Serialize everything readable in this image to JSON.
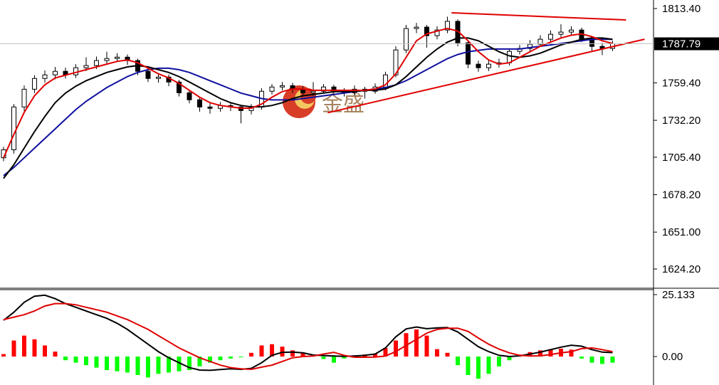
{
  "chart_data": [
    {
      "type": "candlestick",
      "xlim": [
        -0.345,
        62.76
      ],
      "ylim": [
        1610.24,
        1819.6
      ],
      "yticks": [
        {
          "value": 1813.4,
          "label": "1813.40"
        },
        {
          "value": 1759.4,
          "label": "1759.40"
        },
        {
          "value": 1732.2,
          "label": "1732.20"
        },
        {
          "value": 1705.4,
          "label": "1705.40"
        },
        {
          "value": 1678.2,
          "label": "1678.20"
        },
        {
          "value": 1651.0,
          "label": "1651.00"
        },
        {
          "value": 1624.2,
          "label": "1624.20"
        }
      ],
      "last_price": 1787.79,
      "watermark": "金盛",
      "open": [
        1705.0,
        1710.8,
        1741.9,
        1754.8,
        1762.6,
        1765.2,
        1767.8,
        1765.2,
        1770.4,
        1772.0,
        1775.6,
        1777.1,
        1778.1,
        1775.6,
        1767.8,
        1762.6,
        1763.6,
        1760.0,
        1752.2,
        1747.1,
        1741.9,
        1740.9,
        1742.9,
        1741.9,
        1739.3,
        1741.9,
        1753.3,
        1756.4,
        1757.4,
        1754.8,
        1752.2,
        1753.3,
        1756.4,
        1753.3,
        1752.2,
        1754.8,
        1753.3,
        1756.4,
        1765.2,
        1783.3,
        1798.9,
        1799.9,
        1793.7,
        1797.8,
        1804.1,
        1788.5,
        1773.0,
        1770.4,
        1773.0,
        1774.0,
        1782.3,
        1784.4,
        1787.5,
        1791.1,
        1794.7,
        1796.3,
        1797.8,
        1791.1,
        1785.9,
        1784.4
      ],
      "high": [
        1713.0,
        1744.0,
        1757.5,
        1765.0,
        1768.5,
        1771.0,
        1770.5,
        1773.0,
        1778.0,
        1778.5,
        1782.0,
        1781.0,
        1780.0,
        1777.0,
        1769.5,
        1766.0,
        1765.5,
        1761.5,
        1754.0,
        1749.0,
        1744.5,
        1745.5,
        1745.0,
        1743.5,
        1744.0,
        1755.5,
        1758.5,
        1760.0,
        1759.5,
        1757.0,
        1760.0,
        1758.5,
        1758.0,
        1755.5,
        1757.5,
        1756.5,
        1759.0,
        1767.5,
        1786.0,
        1801.5,
        1803.0,
        1801.5,
        1800.5,
        1807.5,
        1805.5,
        1790.0,
        1775.5,
        1775.5,
        1777.0,
        1784.5,
        1787.0,
        1790.5,
        1794.0,
        1797.5,
        1802.0,
        1800.5,
        1799.5,
        1793.0,
        1788.5,
        1790.0
      ],
      "low": [
        1702.5,
        1708.0,
        1739.0,
        1752.0,
        1759.5,
        1762.0,
        1762.5,
        1763.0,
        1768.0,
        1769.5,
        1773.0,
        1774.5,
        1772.5,
        1765.0,
        1760.0,
        1759.5,
        1757.0,
        1749.5,
        1744.5,
        1738.5,
        1737.0,
        1738.5,
        1739.0,
        1730.0,
        1736.5,
        1740.0,
        1751.0,
        1754.0,
        1752.0,
        1749.5,
        1750.0,
        1751.5,
        1751.0,
        1749.5,
        1750.5,
        1748.0,
        1751.5,
        1754.0,
        1763.5,
        1781.0,
        1795.5,
        1785.0,
        1791.0,
        1795.5,
        1786.0,
        1770.0,
        1767.5,
        1768.0,
        1770.5,
        1772.0,
        1780.0,
        1782.0,
        1785.5,
        1789.0,
        1792.5,
        1793.5,
        1789.0,
        1782.0,
        1779.5,
        1782.5
      ],
      "close": [
        1710.8,
        1741.9,
        1754.8,
        1762.6,
        1765.2,
        1767.8,
        1765.2,
        1770.4,
        1772.0,
        1775.6,
        1777.1,
        1778.1,
        1775.6,
        1767.8,
        1762.6,
        1763.6,
        1760.0,
        1752.2,
        1747.1,
        1741.9,
        1740.9,
        1742.9,
        1741.9,
        1739.3,
        1741.9,
        1753.3,
        1756.4,
        1757.4,
        1754.8,
        1752.2,
        1753.3,
        1756.4,
        1753.3,
        1752.2,
        1754.8,
        1753.3,
        1756.4,
        1765.2,
        1783.3,
        1798.9,
        1799.9,
        1793.7,
        1797.8,
        1804.1,
        1788.5,
        1773.0,
        1770.4,
        1773.0,
        1774.0,
        1782.3,
        1784.4,
        1787.5,
        1791.1,
        1794.7,
        1796.3,
        1797.8,
        1791.1,
        1785.9,
        1784.4,
        1787.8
      ],
      "lines": [
        {
          "color": "#1010a0",
          "values": [
            1692,
            1698,
            1705,
            1712,
            1719,
            1726,
            1733,
            1740,
            1746,
            1751,
            1756,
            1760,
            1764,
            1767,
            1769,
            1770,
            1770,
            1769,
            1767,
            1764,
            1761,
            1758,
            1755,
            1752,
            1750,
            1748,
            1747,
            1747,
            1747,
            1748,
            1749,
            1750,
            1751,
            1752,
            1753,
            1754,
            1755,
            1756,
            1758,
            1761,
            1765,
            1769,
            1773,
            1777,
            1780,
            1782,
            1783,
            1784,
            1784,
            1784,
            1784,
            1785,
            1786,
            1787,
            1788,
            1789,
            1790,
            1791,
            1791,
            1791
          ]
        },
        {
          "color": "#000000",
          "values": [
            1690,
            1700,
            1712,
            1724,
            1735,
            1745,
            1752,
            1757,
            1761,
            1764,
            1767,
            1769,
            1771,
            1772,
            1771,
            1769,
            1767,
            1764,
            1760,
            1756,
            1752,
            1748,
            1745,
            1743,
            1742,
            1742,
            1743,
            1745,
            1748,
            1750,
            1751,
            1752,
            1753,
            1753,
            1753,
            1754,
            1754,
            1755,
            1758,
            1764,
            1771,
            1778,
            1784,
            1789,
            1792,
            1792,
            1790,
            1786,
            1782,
            1779,
            1778,
            1779,
            1781,
            1784,
            1787,
            1789,
            1791,
            1792,
            1792,
            1791
          ]
        },
        {
          "color": "#e00000",
          "values": [
            1705,
            1722,
            1738,
            1750,
            1758,
            1763,
            1765,
            1767,
            1769,
            1771,
            1773,
            1775,
            1776,
            1774,
            1770,
            1766,
            1763,
            1759,
            1754,
            1749,
            1745,
            1743,
            1742,
            1741,
            1741,
            1744,
            1749,
            1753,
            1755,
            1755,
            1754,
            1754,
            1754,
            1754,
            1754,
            1754,
            1755,
            1758,
            1766,
            1778,
            1790,
            1795,
            1797,
            1799,
            1797,
            1790,
            1782,
            1776,
            1773,
            1774,
            1778,
            1782,
            1786,
            1789,
            1792,
            1794,
            1795,
            1793,
            1790,
            1788
          ]
        }
      ],
      "trendlines": [
        {
          "color": "#e00000",
          "x": [
            43.4,
            60.3
          ],
          "y": [
            1810.3,
            1805.1
          ]
        },
        {
          "color": "#e00000",
          "x": [
            31.4,
            62.1
          ],
          "y": [
            1737.7,
            1791.1
          ]
        }
      ]
    },
    {
      "type": "macd",
      "xlim": [
        -0.345,
        62.76
      ],
      "ylim": [
        -11.555,
        27.155
      ],
      "yticks": [
        25.133,
        {
          "value": 0,
          "label": "0.00"
        }
      ],
      "positive_color": "#ff0000",
      "negative_color": "#00ff00",
      "values": [
        1.0,
        6.5,
        8.5,
        7.0,
        4.5,
        2.0,
        -1.5,
        -2.5,
        -3.5,
        -4.5,
        -5.5,
        -6.0,
        -6.5,
        -7.5,
        -8.5,
        -7.0,
        -6.5,
        -6.0,
        -5.5,
        -4.0,
        -2.5,
        -1.5,
        -0.8,
        -0.3,
        1.5,
        4.5,
        5.0,
        4.0,
        2.5,
        1.5,
        0.8,
        -1.0,
        -2.5,
        -0.8,
        0.5,
        0.8,
        1.2,
        3.5,
        6.5,
        9.5,
        11.0,
        8.5,
        3.0,
        1.5,
        -3.5,
        -7.5,
        -9.0,
        -7.0,
        -4.0,
        -1.5,
        0.8,
        1.8,
        2.5,
        3.0,
        3.2,
        2.8,
        -0.8,
        -2.5,
        -3.0,
        -2.5
      ],
      "lines": [
        {
          "color": "#000000",
          "values": [
            14.7,
            18,
            22,
            24.5,
            24.9,
            23.5,
            21.5,
            20,
            18.5,
            17,
            15.5,
            13.5,
            11,
            8,
            5,
            2,
            -0.5,
            -2.5,
            -4.5,
            -5.5,
            -5.6,
            -5.3,
            -5.0,
            -5.2,
            -4.8,
            -2.5,
            0.5,
            1.7,
            1.8,
            1.5,
            0.6,
            0.4,
            0.2,
            0.1,
            0.2,
            0.5,
            1.0,
            3.5,
            8.0,
            11.2,
            12.0,
            11.3,
            11.6,
            11.8,
            10.0,
            7.0,
            4.0,
            2.0,
            0.5,
            0.0,
            0.3,
            1.0,
            1.8,
            2.8,
            3.8,
            4.6,
            4.2,
            2.8,
            1.8,
            1.6
          ]
        },
        {
          "color": "#e00000",
          "values": [
            15,
            16,
            17,
            18.5,
            20.5,
            21.5,
            21.5,
            21,
            20,
            19,
            18,
            16.5,
            15,
            13,
            11,
            8.5,
            6,
            3.5,
            1.5,
            -0.5,
            -2,
            -3.5,
            -4.5,
            -5,
            -5.2,
            -4.3,
            -3.5,
            -2.0,
            -0.5,
            0,
            0.2,
            1.0,
            1.7,
            0.5,
            -0.3,
            -0.3,
            -0.2,
            0.2,
            2.0,
            4.5,
            7,
            9.5,
            11,
            11.5,
            11.5,
            10.2,
            7.5,
            5,
            3,
            1.5,
            0.5,
            0.2,
            0.3,
            0.8,
            1.5,
            2.0,
            3.2,
            3.5,
            2.8,
            2.0
          ]
        }
      ]
    }
  ]
}
